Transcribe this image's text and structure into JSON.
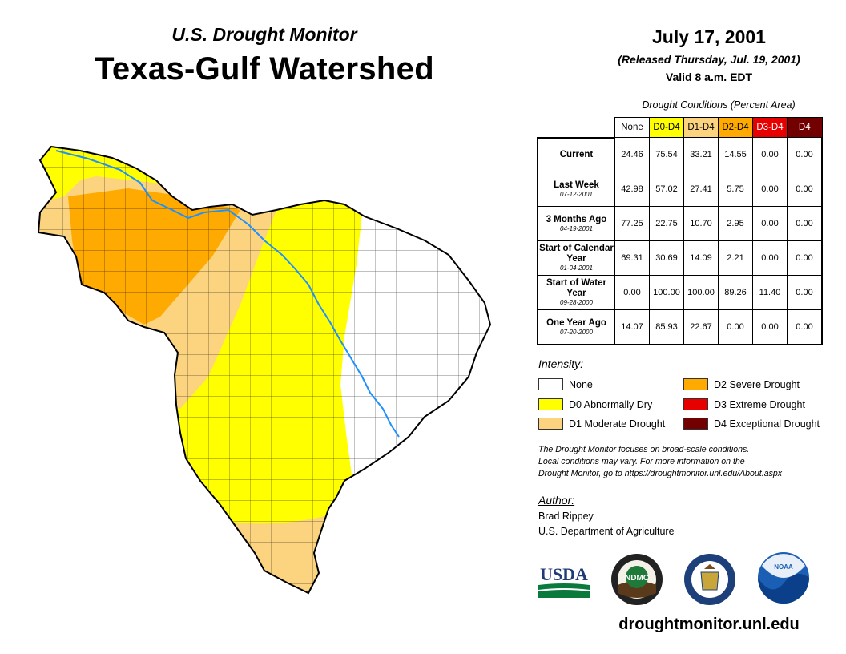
{
  "header": {
    "subtitle": "U.S. Drought Monitor",
    "title": "Texas-Gulf Watershed",
    "date": "July 17, 2001",
    "released": "(Released Thursday, Jul. 19, 2001)",
    "valid": "Valid 8 a.m. EDT"
  },
  "table": {
    "caption": "Drought Conditions (Percent Area)",
    "columns": [
      {
        "label": "None",
        "color": "#ffffff",
        "text_color": "#000000"
      },
      {
        "label": "D0-D4",
        "color": "#ffff00",
        "text_color": "#000000"
      },
      {
        "label": "D1-D4",
        "color": "#fcd37f",
        "text_color": "#000000"
      },
      {
        "label": "D2-D4",
        "color": "#ffaa00",
        "text_color": "#000000"
      },
      {
        "label": "D3-D4",
        "color": "#e60000",
        "text_color": "#ffffff"
      },
      {
        "label": "D4",
        "color": "#730000",
        "text_color": "#ffffff"
      }
    ],
    "rows": [
      {
        "label": "Current",
        "date": "",
        "values": [
          "24.46",
          "75.54",
          "33.21",
          "14.55",
          "0.00",
          "0.00"
        ]
      },
      {
        "label": "Last Week",
        "date": "07-12-2001",
        "values": [
          "42.98",
          "57.02",
          "27.41",
          "5.75",
          "0.00",
          "0.00"
        ]
      },
      {
        "label": "3 Months Ago",
        "date": "04-19-2001",
        "values": [
          "77.25",
          "22.75",
          "10.70",
          "2.95",
          "0.00",
          "0.00"
        ]
      },
      {
        "label": "Start of Calendar Year",
        "date": "01-04-2001",
        "values": [
          "69.31",
          "30.69",
          "14.09",
          "2.21",
          "0.00",
          "0.00"
        ]
      },
      {
        "label": "Start of Water Year",
        "date": "09-28-2000",
        "values": [
          "0.00",
          "100.00",
          "100.00",
          "89.26",
          "11.40",
          "0.00"
        ]
      },
      {
        "label": "One Year Ago",
        "date": "07-20-2000",
        "values": [
          "14.07",
          "85.93",
          "22.67",
          "0.00",
          "0.00",
          "0.00"
        ]
      }
    ]
  },
  "legend": {
    "title": "Intensity:",
    "items": [
      {
        "label": "None",
        "color": "#ffffff"
      },
      {
        "label": "D0 Abnormally Dry",
        "color": "#ffff00"
      },
      {
        "label": "D1 Moderate Drought",
        "color": "#fcd37f"
      },
      {
        "label": "D2 Severe Drought",
        "color": "#ffaa00"
      },
      {
        "label": "D3 Extreme Drought",
        "color": "#e60000"
      },
      {
        "label": "D4 Exceptional Drought",
        "color": "#730000"
      }
    ]
  },
  "note": {
    "line1": "The Drought Monitor focuses on broad-scale conditions.",
    "line2": "Local conditions may vary. For more information on the",
    "line3": "Drought Monitor, go to https://droughtmonitor.unl.edu/About.aspx"
  },
  "author": {
    "title": "Author:",
    "name": "Brad Rippey",
    "org": "U.S. Department of Agriculture"
  },
  "logos": {
    "usda": "USDA",
    "ndmc": "NDMC",
    "noaa": "NOAA"
  },
  "footer": {
    "website": "droughtmonitor.unl.edu"
  },
  "map": {
    "river_color": "#1e90ff",
    "county_line_color": "#000000"
  }
}
